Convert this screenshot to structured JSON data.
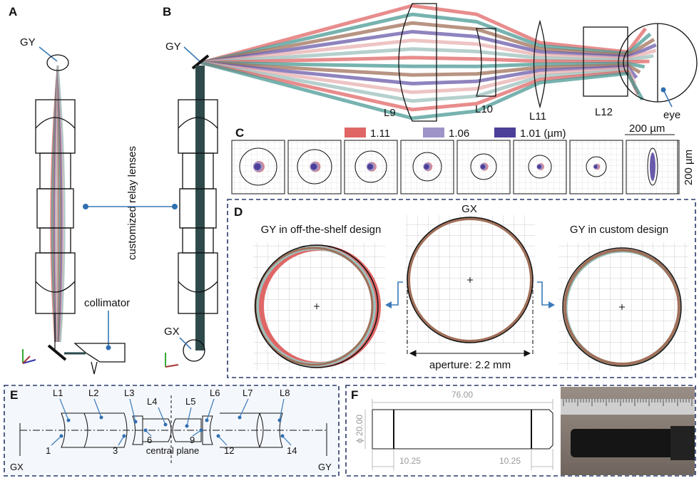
{
  "panels": {
    "A": {
      "label": "A",
      "gy": "GY",
      "relay": "customized relay lenses",
      "collimator": "collimator"
    },
    "B": {
      "label": "B",
      "gy": "GY",
      "gx": "GX",
      "lenses": [
        "L9",
        "L10",
        "L11",
        "L12"
      ],
      "eye": "eye"
    },
    "C": {
      "label": "C",
      "legend": [
        "1.11",
        "1.06",
        "1.01 (µm)"
      ],
      "scale_x": "200 µm",
      "scale_y": "200 µm"
    },
    "D": {
      "label": "D",
      "left_title": "GY in off-the-shelf design",
      "center_title": "GX",
      "right_title": "GY in custom design",
      "aperture": "aperture: 2.2 mm"
    },
    "E": {
      "label": "E",
      "lenses": [
        "L1",
        "L2",
        "L3",
        "L4",
        "L5",
        "L6",
        "L7",
        "L8"
      ],
      "surfaces": [
        "1",
        "3",
        "6",
        "9",
        "12",
        "14"
      ],
      "central_plane": "central plane",
      "gx": "GX",
      "gy": "GY"
    },
    "F": {
      "label": "F",
      "length": "76.00",
      "diameter": "ϕ 20.00",
      "left_offset": "10.25",
      "right_offset": "10.25"
    }
  }
}
